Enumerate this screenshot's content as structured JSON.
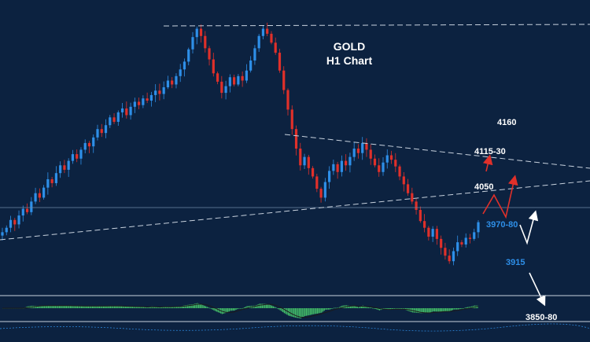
{
  "chart_data": {
    "type": "candlestick",
    "title": "GOLD",
    "subtitle": "H1 Chart",
    "timeframe": "H1",
    "symbol": "GOLD",
    "price_labels": [
      "4160",
      "4115-30",
      "4050",
      "3970-80",
      "3915",
      "3850-80"
    ],
    "key_levels": {
      "resistance_high": 4160,
      "resistance_mid": "4115-30",
      "pivot": 4050,
      "support_zone": "3970-80",
      "support": 3915,
      "target_low": "3850-80"
    },
    "scenarios": [
      {
        "name": "bullish",
        "path": [
          "3970-80",
          "4115-30"
        ],
        "color": "#e0302a"
      },
      {
        "name": "bearish",
        "path": [
          "3970-80",
          "3915",
          "3850-80"
        ],
        "color": "#ffffff"
      }
    ],
    "closes": [
      3990,
      3998,
      4012,
      4004,
      4020,
      4032,
      4026,
      4045,
      4060,
      4052,
      4070,
      4085,
      4078,
      4096,
      4110,
      4102,
      4118,
      4130,
      4122,
      4138,
      4150,
      4144,
      4160,
      4175,
      4168,
      4182,
      4196,
      4188,
      4205,
      4212,
      4200,
      4215,
      4224,
      4218,
      4230,
      4226,
      4236,
      4244,
      4238,
      4250,
      4262,
      4255,
      4270,
      4282,
      4296,
      4318,
      4340,
      4355,
      4342,
      4320,
      4300,
      4275,
      4260,
      4240,
      4252,
      4268,
      4255,
      4270,
      4262,
      4280,
      4298,
      4320,
      4342,
      4355,
      4346,
      4330,
      4312,
      4280,
      4245,
      4210,
      4175,
      4140,
      4110,
      4125,
      4105,
      4090,
      4068,
      4052,
      4080,
      4100,
      4112,
      4098,
      4118,
      4110,
      4125,
      4140,
      4132,
      4150,
      4138,
      4122,
      4110,
      4098,
      4115,
      4128,
      4120,
      4108,
      4090,
      4076,
      4060,
      4045,
      4030,
      4010,
      3998,
      3982,
      3996,
      3978,
      3962,
      3948,
      3938,
      3956,
      3972,
      3968,
      3980,
      3978,
      3990,
      4008
    ],
    "oscillator": {
      "type": "histogram",
      "description": "momentum histogram, green bars"
    },
    "colors": {
      "background": "#0c2240",
      "bull_candle": "#2e8fe8",
      "bear_candle": "#e0302a",
      "trendline": "#c8d2de",
      "histogram": "#46c46a",
      "label_white": "#ffffff",
      "label_blue": "#2e8fe8"
    }
  }
}
